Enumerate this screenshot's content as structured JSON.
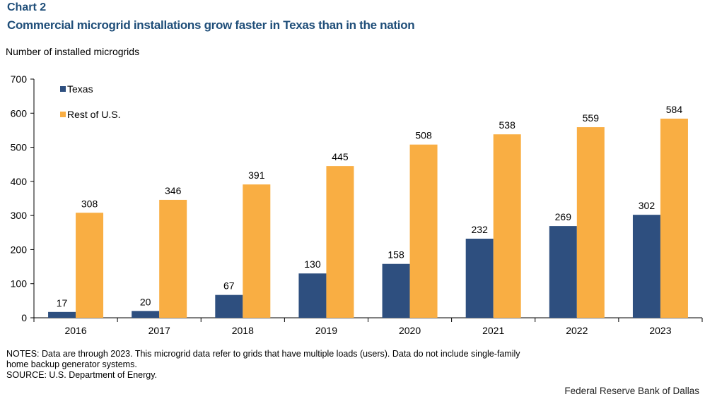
{
  "header": {
    "chart_label": "Chart 2",
    "title": "Commercial microgrid installations grow faster in Texas than in the nation"
  },
  "chart_data": {
    "type": "bar",
    "title": "Commercial microgrid installations grow faster in Texas than in the nation",
    "ylabel": "Number of installed microgrids",
    "xlabel": "",
    "ylim": [
      0,
      700
    ],
    "yticks": [
      0,
      100,
      200,
      300,
      400,
      500,
      600,
      700
    ],
    "categories": [
      "2016",
      "2017",
      "2018",
      "2019",
      "2020",
      "2021",
      "2022",
      "2023"
    ],
    "series": [
      {
        "name": "Texas",
        "color": "#2e4f7f",
        "values": [
          17,
          20,
          67,
          130,
          158,
          232,
          269,
          302
        ]
      },
      {
        "name": "Rest of U.S.",
        "color": "#f9ae43",
        "values": [
          308,
          346,
          391,
          445,
          508,
          538,
          559,
          584
        ]
      }
    ],
    "legend_position": "top-left",
    "data_labels": true
  },
  "footer": {
    "notes_line1": "NOTES: Data are through 2023. This microgrid data refer to grids that have multiple loads (users). Data do not include single-family",
    "notes_line2": "home backup generator systems.",
    "source": "SOURCE: U.S. Department of Energy.",
    "credit": "Federal Reserve Bank of Dallas"
  }
}
